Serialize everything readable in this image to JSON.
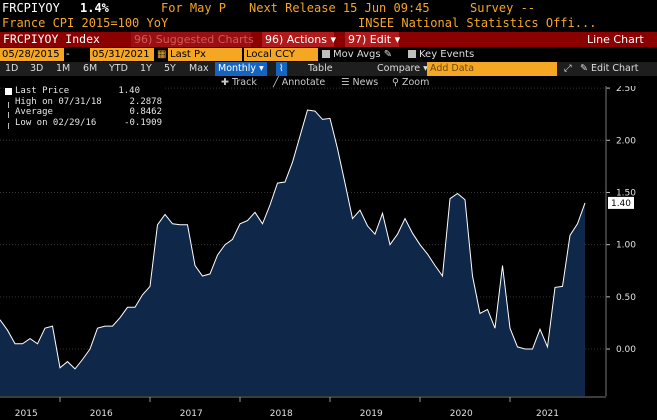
{
  "header": {
    "ticker": "FRCPIYOY",
    "last_value": "1.4%",
    "for_label": "For May P",
    "next_release": "Next Release 15 Jun 09:45",
    "survey": "Survey --",
    "description": "France CPI 2015=100 YoY",
    "source": "INSEE National Statistics Offi..."
  },
  "toolbar": {
    "security": "FRCPIYOY Index",
    "suggested": "96) Suggested Charts",
    "actions": "96) Actions ▾",
    "edit": "97) Edit ▾",
    "chart_type": "Line Chart"
  },
  "range": {
    "start": "05/28/2015",
    "end": "05/31/2021",
    "field": "Last Px",
    "currency": "Local CCY",
    "mov_avgs": "Mov Avgs",
    "key_events": "Key Events"
  },
  "periods": {
    "items": [
      "1D",
      "3D",
      "1M",
      "6M",
      "YTD",
      "1Y",
      "5Y",
      "Max"
    ],
    "frequency": "Monthly ▾",
    "table": "Table",
    "compare": "Compare ▾",
    "add_data_placeholder": "Add Data",
    "edit_chart": "✎ Edit Chart"
  },
  "tools": {
    "track": "✚ Track",
    "annotate": "╱ Annotate",
    "news": "☰ News",
    "zoom": "⚲ Zoom"
  },
  "legend": {
    "last_price_label": "Last Price",
    "last_price_value": "1.40",
    "high_label": "High on 07/31/18",
    "high_value": "2.2878",
    "average_label": "Average",
    "average_value": "0.8462",
    "low_label": "Low on 02/29/16",
    "low_value": "-0.1909"
  },
  "chart_data": {
    "type": "area",
    "xlabel": "",
    "ylabel": "",
    "ylim": [
      -0.45,
      2.52
    ],
    "y_ticks": [
      "2.50",
      "2.00",
      "1.50",
      "1.00",
      "0.50",
      "0.00"
    ],
    "y_tick_values": [
      2.5,
      2.0,
      1.5,
      1.0,
      0.5,
      0.0
    ],
    "x_tick_labels": [
      "2015",
      "2016",
      "2017",
      "2018",
      "2019",
      "2020",
      "2021"
    ],
    "last_value_label": "1.40",
    "series": [
      {
        "values": [
          0.28,
          0.18,
          0.05,
          0.05,
          0.1,
          0.05,
          0.2,
          0.22,
          -0.18,
          -0.12,
          -0.19,
          -0.1,
          0.0,
          0.2,
          0.22,
          0.22,
          0.3,
          0.4,
          0.4,
          0.52,
          0.6,
          1.19,
          1.29,
          1.2,
          1.19,
          1.19,
          0.8,
          0.7,
          0.72,
          0.9,
          1.0,
          1.05,
          1.2,
          1.23,
          1.31,
          1.2,
          1.38,
          1.59,
          1.6,
          1.79,
          2.04,
          2.29,
          2.28,
          2.2,
          2.21,
          1.92,
          1.59,
          1.25,
          1.33,
          1.18,
          1.1,
          1.3,
          1.0,
          1.1,
          1.25,
          1.11,
          1.0,
          0.91,
          0.8,
          0.7,
          1.44,
          1.49,
          1.43,
          0.7,
          0.34,
          0.38,
          0.2,
          0.8,
          0.2,
          0.02,
          0.0,
          0.0,
          0.19,
          0.02,
          0.59,
          0.6,
          1.09,
          1.2,
          1.4
        ]
      }
    ],
    "x_start": "2015-05",
    "x_end": "2021-05",
    "frequency": "monthly"
  },
  "colors": {
    "amber": "#f5a623",
    "toolbar_red": "#8b0000",
    "area_fill": "#0f2748",
    "line": "#ffffff",
    "grid": "#333333"
  }
}
